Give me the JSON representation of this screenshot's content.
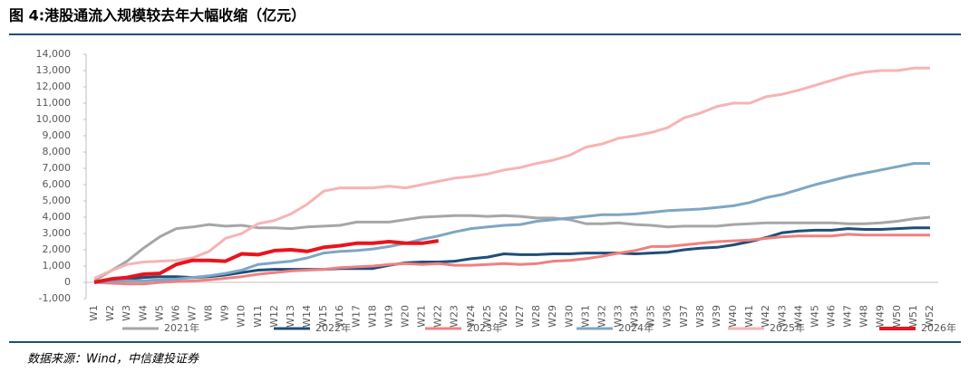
{
  "chart_data": {
    "type": "line",
    "title": "图 4:港股通流入规模较去年大幅收缩（亿元）",
    "source": "数据来源：Wind，中信建投证券",
    "categories": [
      "W1",
      "W2",
      "W3",
      "W4",
      "W5",
      "W6",
      "W7",
      "W8",
      "W9",
      "W10",
      "W11",
      "W12",
      "W13",
      "W14",
      "W15",
      "W16",
      "W17",
      "W18",
      "W19",
      "W20",
      "W21",
      "W22",
      "W23",
      "W24",
      "W25",
      "W26",
      "W27",
      "W28",
      "W29",
      "W30",
      "W31",
      "W32",
      "W33",
      "W34",
      "W35",
      "W36",
      "W37",
      "W38",
      "W39",
      "W40",
      "W41",
      "W42",
      "W43",
      "W44",
      "W45",
      "W46",
      "W47",
      "W48",
      "W49",
      "W50",
      "W51",
      "W52"
    ],
    "ylim": [
      -1000,
      14000
    ],
    "yticks": [
      {
        "value": -1000,
        "label": "-1,000"
      },
      0,
      {
        "value": 1000,
        "label": "1,000"
      },
      {
        "value": 2000,
        "label": "2,000"
      },
      {
        "value": 3000,
        "label": "3,000"
      },
      {
        "value": 4000,
        "label": "4,000"
      },
      {
        "value": 5000,
        "label": "5,000"
      },
      {
        "value": 6000,
        "label": "6,000"
      },
      {
        "value": 7000,
        "label": "7,000"
      },
      {
        "value": 8000,
        "label": "8,000"
      },
      {
        "value": 9000,
        "label": "9,000"
      },
      {
        "value": 10000,
        "label": "10,000"
      },
      {
        "value": 11000,
        "label": "11,000"
      },
      {
        "value": 12000,
        "label": "12,000"
      },
      {
        "value": 13000,
        "label": "13,000"
      },
      {
        "value": 14000,
        "label": "14,000"
      }
    ],
    "series": [
      {
        "name": "2021年",
        "color": "#a6a6a6",
        "values": [
          100,
          700,
          1300,
          2100,
          2800,
          3300,
          3400,
          3550,
          3450,
          3500,
          3350,
          3350,
          3300,
          3400,
          3450,
          3500,
          3700,
          3700,
          3700,
          3850,
          4000,
          4050,
          4100,
          4100,
          4050,
          4100,
          4050,
          3950,
          3950,
          3850,
          3600,
          3600,
          3650,
          3550,
          3500,
          3400,
          3450,
          3450,
          3450,
          3550,
          3600,
          3650,
          3650,
          3650,
          3650,
          3650,
          3600,
          3600,
          3650,
          3750,
          3900,
          4000
        ]
      },
      {
        "name": "2022年",
        "color": "#1f4e79",
        "values": [
          0,
          100,
          200,
          300,
          350,
          350,
          300,
          350,
          450,
          600,
          750,
          800,
          800,
          800,
          800,
          850,
          850,
          850,
          1050,
          1200,
          1250,
          1250,
          1300,
          1450,
          1550,
          1750,
          1700,
          1700,
          1750,
          1750,
          1800,
          1800,
          1800,
          1750,
          1800,
          1850,
          2000,
          2100,
          2150,
          2300,
          2500,
          2750,
          3050,
          3150,
          3200,
          3200,
          3300,
          3250,
          3250,
          3300,
          3350,
          3350
        ]
      },
      {
        "name": "2023年",
        "color": "#f08080",
        "values": [
          0,
          -50,
          -100,
          -100,
          0,
          50,
          100,
          150,
          250,
          350,
          500,
          600,
          700,
          750,
          800,
          900,
          950,
          1000,
          1100,
          1150,
          1100,
          1150,
          1050,
          1050,
          1100,
          1150,
          1100,
          1150,
          1300,
          1350,
          1450,
          1600,
          1800,
          1950,
          2200,
          2200,
          2300,
          2400,
          2500,
          2550,
          2600,
          2700,
          2800,
          2850,
          2850,
          2850,
          2950,
          2900,
          2900,
          2900,
          2900,
          2900
        ]
      },
      {
        "name": "2024年",
        "color": "#7ea6c4",
        "values": [
          0,
          50,
          100,
          100,
          150,
          200,
          300,
          400,
          550,
          750,
          1100,
          1200,
          1300,
          1500,
          1800,
          1900,
          1950,
          2050,
          2200,
          2400,
          2650,
          2850,
          3100,
          3300,
          3400,
          3500,
          3550,
          3750,
          3850,
          3950,
          4050,
          4150,
          4150,
          4200,
          4300,
          4400,
          4450,
          4500,
          4600,
          4700,
          4900,
          5200,
          5400,
          5700,
          6000,
          6250,
          6500,
          6700,
          6900,
          7100,
          7300,
          7300
        ]
      },
      {
        "name": "2025年",
        "color": "#f7b3b3",
        "values": [
          250,
          700,
          1100,
          1250,
          1300,
          1350,
          1500,
          1900,
          2700,
          3000,
          3600,
          3800,
          4200,
          4800,
          5600,
          5800,
          5800,
          5800,
          5900,
          5800,
          6000,
          6200,
          6400,
          6500,
          6650,
          6900,
          7050,
          7300,
          7500,
          7800,
          8300,
          8500,
          8850,
          9000,
          9200,
          9500,
          10100,
          10400,
          10800,
          11000,
          11000,
          11400,
          11550,
          11800,
          12100,
          12400,
          12700,
          12900,
          13000,
          13000,
          13150,
          13150
        ]
      },
      {
        "name": "2026年",
        "color": "#e8141e",
        "values": [
          0,
          200,
          300,
          500,
          550,
          1100,
          1350,
          1350,
          1300,
          1750,
          1700,
          1950,
          2000,
          1900,
          2150,
          2250,
          2400,
          2400,
          2500,
          2400,
          2400,
          2550,
          null,
          null,
          null,
          null,
          null,
          null,
          null,
          null,
          null,
          null,
          null,
          null,
          null,
          null,
          null,
          null,
          null,
          null,
          null,
          null,
          null,
          null,
          null,
          null,
          null,
          null,
          null,
          null,
          null,
          null
        ]
      }
    ]
  }
}
